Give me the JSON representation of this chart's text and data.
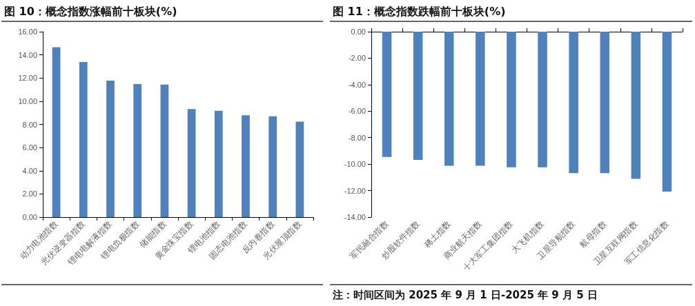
{
  "chart_data": [
    {
      "type": "bar",
      "title": "图 10：概念指数涨幅前十板块(%)",
      "categories": [
        "动力电池指数",
        "光伏逆变器指数",
        "锂电电解液指数",
        "锂电负极指数",
        "储能指数",
        "黄金珠宝指数",
        "锂电池指数",
        "固态电池指数",
        "反内卷指数",
        "光伏屋顶指数"
      ],
      "values": [
        14.66,
        13.38,
        11.78,
        11.48,
        11.43,
        9.33,
        9.18,
        8.79,
        8.7,
        8.24
      ],
      "color": "#4f81bd",
      "ylim": [
        0,
        16
      ],
      "yticks": [
        {
          "value": 0,
          "label": "0.00"
        },
        {
          "value": 2,
          "label": "2.00"
        },
        {
          "value": 4,
          "label": "4.00"
        },
        {
          "value": 6,
          "label": "6.00"
        },
        {
          "value": 8,
          "label": "8.00"
        },
        {
          "value": 10,
          "label": "10.00"
        },
        {
          "value": 12,
          "label": "12.00"
        },
        {
          "value": 14,
          "label": "14.00"
        },
        {
          "value": 16,
          "label": "16.00"
        }
      ],
      "grid": false
    },
    {
      "type": "bar",
      "title": "图 11：概念指数跌幅前十板块(%)",
      "categories": [
        "军民融合指数",
        "炒股软件指数",
        "稀土指数",
        "商业航天指数",
        "十大军工集团指数",
        "大飞机指数",
        "卫星导航指数",
        "航母指数",
        "卫星互联网指数",
        "军工信息化指数"
      ],
      "values": [
        -9.46,
        -9.68,
        -10.12,
        -10.12,
        -10.24,
        -10.24,
        -10.68,
        -10.68,
        -11.11,
        -12.08
      ],
      "color": "#4f81bd",
      "ylim": [
        -14,
        0
      ],
      "yticks": [
        {
          "value": -14,
          "label": "-14.00"
        },
        {
          "value": -12,
          "label": "-12.00"
        },
        {
          "value": -10,
          "label": "-10.00"
        },
        {
          "value": -8,
          "label": "-8.00"
        },
        {
          "value": -6,
          "label": "-6.00"
        },
        {
          "value": -4,
          "label": "-4.00"
        },
        {
          "value": -2,
          "label": "-2.00"
        },
        {
          "value": 0,
          "label": "0.00"
        }
      ],
      "grid": false,
      "annotations": [
        "注：时间区间为 2025 年 9 月 1 日-2025 年 9 月 5 日"
      ]
    }
  ]
}
